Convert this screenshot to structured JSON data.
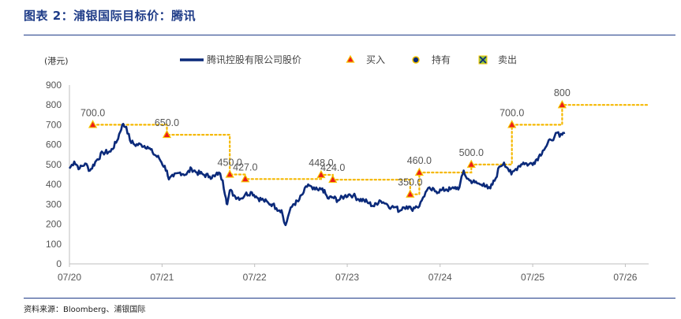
{
  "header": {
    "title": "图表 2：浦银国际目标价：腾讯"
  },
  "footer": {
    "source": "资料来源：Bloomberg、浦银国际"
  },
  "chart_data": {
    "type": "line",
    "unit_label": "(港元)",
    "ylim": [
      0,
      900
    ],
    "yticks": [
      0,
      100,
      200,
      300,
      400,
      500,
      600,
      700,
      800,
      900
    ],
    "xlim": [
      "2020-07-01",
      "2026-10-01"
    ],
    "xticks": [
      {
        "date": "2020-07-01",
        "label": "07/20"
      },
      {
        "date": "2021-07-01",
        "label": "07/21"
      },
      {
        "date": "2022-07-01",
        "label": "07/22"
      },
      {
        "date": "2023-07-01",
        "label": "07/23"
      },
      {
        "date": "2024-07-01",
        "label": "07/24"
      },
      {
        "date": "2025-07-01",
        "label": "07/25"
      },
      {
        "date": "2026-07-01",
        "label": "07/26"
      }
    ],
    "legend": {
      "price": "腾讯控股有限公司股价",
      "buy": "买入",
      "hold": "持有",
      "sell": "卖出",
      "placement": "top"
    },
    "colors": {
      "price": "#0b2a7a",
      "target": "#f5b800",
      "marker_fill": "#ee1c1c",
      "marker_edge": "#f5c400",
      "sell_fill": "#8cc63f",
      "axis": "#bfbfbf"
    },
    "price_series": [
      [
        "2020-07-01",
        480
      ],
      [
        "2020-07-20",
        515
      ],
      [
        "2020-08-10",
        480
      ],
      [
        "2020-09-01",
        505
      ],
      [
        "2020-09-20",
        470
      ],
      [
        "2020-10-15",
        520
      ],
      [
        "2020-11-10",
        560
      ],
      [
        "2020-12-10",
        565
      ],
      [
        "2021-01-05",
        620
      ],
      [
        "2021-01-25",
        700
      ],
      [
        "2021-02-10",
        690
      ],
      [
        "2021-02-25",
        620
      ],
      [
        "2021-03-15",
        600
      ],
      [
        "2021-04-10",
        600
      ],
      [
        "2021-05-05",
        590
      ],
      [
        "2021-05-25",
        560
      ],
      [
        "2021-06-20",
        530
      ],
      [
        "2021-07-20",
        470
      ],
      [
        "2021-07-28",
        425
      ],
      [
        "2021-08-15",
        440
      ],
      [
        "2021-09-10",
        460
      ],
      [
        "2021-10-05",
        450
      ],
      [
        "2021-10-25",
        480
      ],
      [
        "2021-11-15",
        460
      ],
      [
        "2021-12-10",
        450
      ],
      [
        "2022-01-05",
        440
      ],
      [
        "2022-01-25",
        440
      ],
      [
        "2022-02-10",
        460
      ],
      [
        "2022-02-25",
        420
      ],
      [
        "2022-03-10",
        330
      ],
      [
        "2022-03-15",
        300
      ],
      [
        "2022-03-25",
        370
      ],
      [
        "2022-04-15",
        340
      ],
      [
        "2022-05-10",
        330
      ],
      [
        "2022-05-25",
        350
      ],
      [
        "2022-06-20",
        360
      ],
      [
        "2022-07-15",
        330
      ],
      [
        "2022-08-05",
        320
      ],
      [
        "2022-08-25",
        305
      ],
      [
        "2022-09-10",
        300
      ],
      [
        "2022-09-25",
        280
      ],
      [
        "2022-10-15",
        270
      ],
      [
        "2022-10-25",
        210
      ],
      [
        "2022-10-31",
        195
      ],
      [
        "2022-11-15",
        260
      ],
      [
        "2022-11-30",
        300
      ],
      [
        "2022-12-20",
        315
      ],
      [
        "2023-01-10",
        360
      ],
      [
        "2023-01-28",
        400
      ],
      [
        "2023-02-15",
        375
      ],
      [
        "2023-03-10",
        370
      ],
      [
        "2023-03-25",
        380
      ],
      [
        "2023-04-15",
        330
      ],
      [
        "2023-05-05",
        335
      ],
      [
        "2023-05-25",
        320
      ],
      [
        "2023-06-20",
        340
      ],
      [
        "2023-07-10",
        350
      ],
      [
        "2023-07-25",
        345
      ],
      [
        "2023-08-15",
        325
      ],
      [
        "2023-09-05",
        320
      ],
      [
        "2023-09-25",
        305
      ],
      [
        "2023-10-15",
        290
      ],
      [
        "2023-11-05",
        320
      ],
      [
        "2023-11-20",
        310
      ],
      [
        "2023-12-05",
        300
      ],
      [
        "2023-12-22",
        285
      ],
      [
        "2024-01-10",
        285
      ],
      [
        "2024-01-22",
        265
      ],
      [
        "2024-02-05",
        285
      ],
      [
        "2024-02-20",
        290
      ],
      [
        "2024-03-10",
        275
      ],
      [
        "2024-03-28",
        290
      ],
      [
        "2024-04-10",
        290
      ],
      [
        "2024-04-25",
        335
      ],
      [
        "2024-05-10",
        370
      ],
      [
        "2024-05-25",
        375
      ],
      [
        "2024-06-15",
        365
      ],
      [
        "2024-07-05",
        370
      ],
      [
        "2024-07-25",
        375
      ],
      [
        "2024-08-10",
        375
      ],
      [
        "2024-08-25",
        380
      ],
      [
        "2024-09-15",
        385
      ],
      [
        "2024-10-02",
        470
      ],
      [
        "2024-10-10",
        440
      ],
      [
        "2024-10-25",
        420
      ],
      [
        "2024-11-15",
        410
      ],
      [
        "2024-12-05",
        400
      ],
      [
        "2024-12-20",
        405
      ],
      [
        "2025-01-05",
        380
      ],
      [
        "2025-01-15",
        380
      ],
      [
        "2025-02-05",
        430
      ],
      [
        "2025-02-20",
        490
      ],
      [
        "2025-03-10",
        510
      ],
      [
        "2025-03-25",
        480
      ],
      [
        "2025-04-08",
        450
      ],
      [
        "2025-04-20",
        470
      ],
      [
        "2025-05-05",
        490
      ],
      [
        "2025-05-25",
        510
      ],
      [
        "2025-06-15",
        500
      ],
      [
        "2025-07-05",
        510
      ],
      [
        "2025-07-25",
        540
      ],
      [
        "2025-08-10",
        570
      ],
      [
        "2025-08-25",
        595
      ],
      [
        "2025-09-10",
        625
      ],
      [
        "2025-09-25",
        640
      ],
      [
        "2025-10-05",
        660
      ],
      [
        "2025-10-15",
        640
      ],
      [
        "2025-10-25",
        650
      ],
      [
        "2025-11-05",
        660
      ]
    ],
    "target_steps": [
      [
        "2020-10-01",
        700
      ],
      [
        "2021-07-20",
        700
      ],
      [
        "2021-07-20",
        650
      ],
      [
        "2022-03-25",
        650
      ],
      [
        "2022-03-25",
        450
      ],
      [
        "2022-05-25",
        450
      ],
      [
        "2022-05-25",
        427
      ],
      [
        "2023-03-20",
        427
      ],
      [
        "2023-03-20",
        448
      ],
      [
        "2023-05-05",
        448
      ],
      [
        "2023-05-05",
        424
      ],
      [
        "2024-03-05",
        424
      ],
      [
        "2024-03-05",
        350
      ],
      [
        "2024-04-10",
        350
      ],
      [
        "2024-04-10",
        460
      ],
      [
        "2024-11-01",
        460
      ],
      [
        "2024-11-01",
        500
      ],
      [
        "2025-04-10",
        500
      ],
      [
        "2025-04-10",
        700
      ],
      [
        "2025-10-25",
        700
      ],
      [
        "2025-10-25",
        800
      ],
      [
        "2026-10-01",
        800
      ]
    ],
    "ratings": [
      {
        "date": "2020-10-01",
        "target": 700,
        "rating": "buy",
        "label": "700.0"
      },
      {
        "date": "2021-07-20",
        "target": 650,
        "rating": "buy",
        "label": "650.0"
      },
      {
        "date": "2022-03-25",
        "target": 450,
        "rating": "buy",
        "label": "450.0"
      },
      {
        "date": "2022-05-25",
        "target": 427,
        "rating": "buy",
        "label": "427.0"
      },
      {
        "date": "2023-03-20",
        "target": 448,
        "rating": "buy",
        "label": "448.0"
      },
      {
        "date": "2023-05-05",
        "target": 424,
        "rating": "buy",
        "label": "424.0"
      },
      {
        "date": "2024-03-05",
        "target": 350,
        "rating": "buy",
        "label": "350.0"
      },
      {
        "date": "2024-04-10",
        "target": 460,
        "rating": "buy",
        "label": "460.0"
      },
      {
        "date": "2024-11-01",
        "target": 500,
        "rating": "buy",
        "label": "500.0"
      },
      {
        "date": "2025-04-10",
        "target": 700,
        "rating": "buy",
        "label": "700.0"
      },
      {
        "date": "2025-10-25",
        "target": 800,
        "rating": "buy",
        "label": "800"
      }
    ],
    "grid": false
  }
}
